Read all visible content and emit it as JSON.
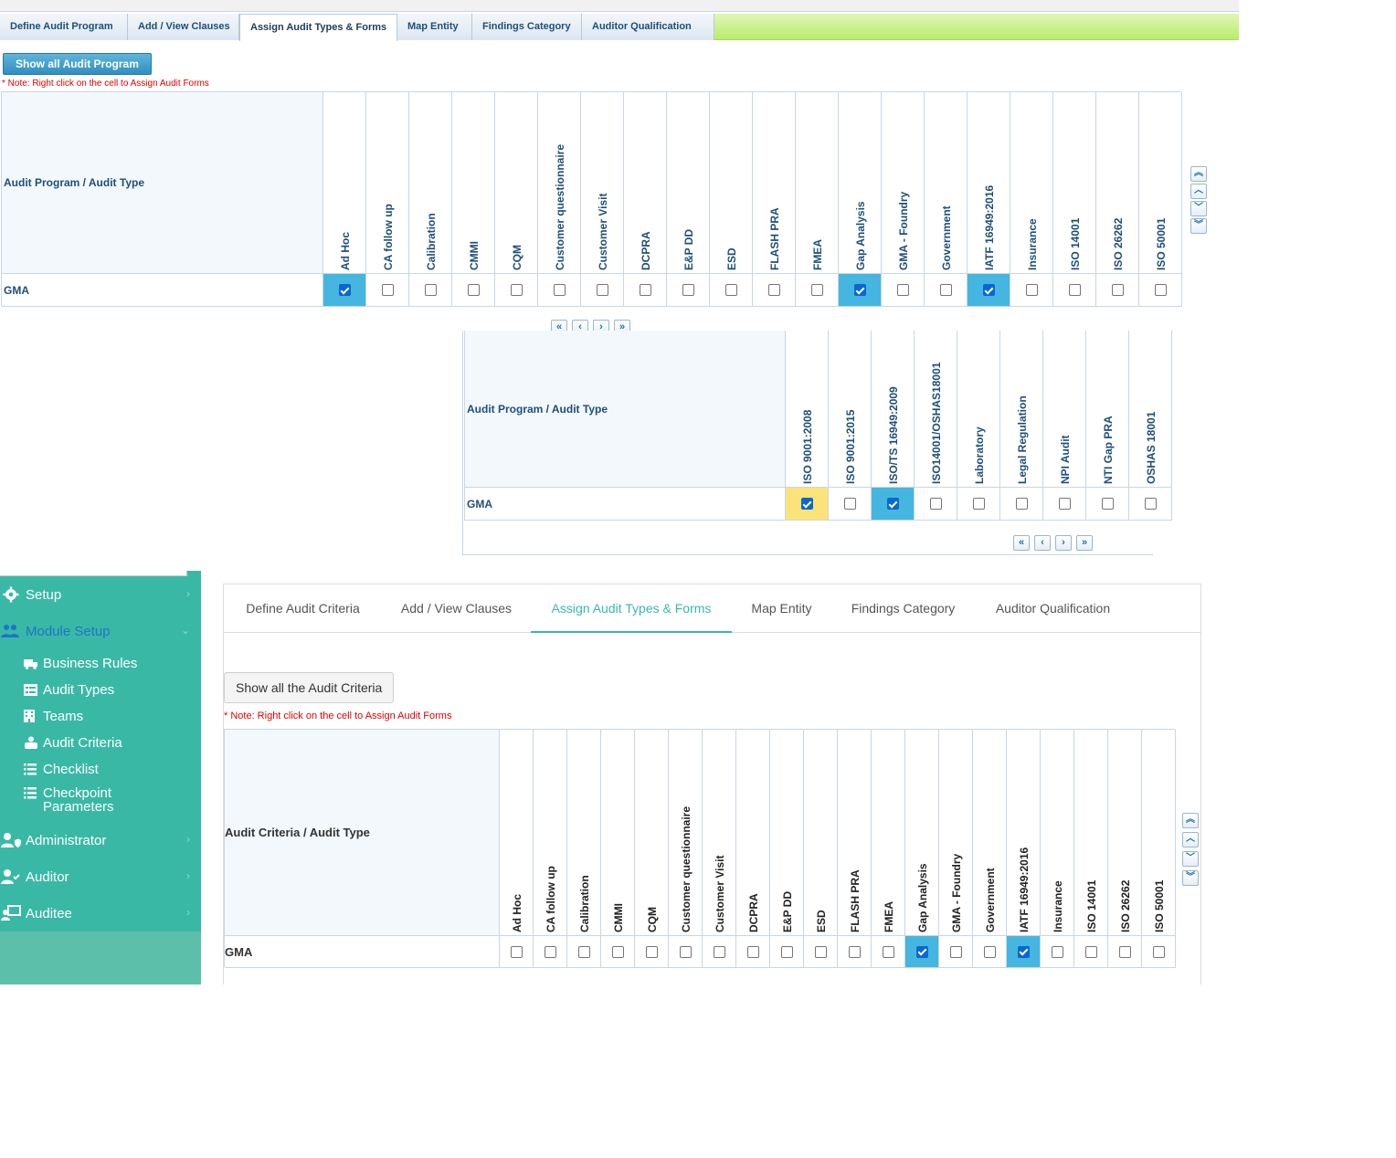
{
  "old_ui": {
    "tabs": [
      {
        "label": "Define Audit Program",
        "active": false
      },
      {
        "label": "Add / View Clauses",
        "active": false
      },
      {
        "label": "Assign Audit Types & Forms",
        "active": true
      },
      {
        "label": "Map Entity",
        "active": false
      },
      {
        "label": "Findings Category",
        "active": false
      },
      {
        "label": "Auditor Qualification",
        "active": false
      }
    ],
    "show_all_button": "Show all Audit Program",
    "note": "* Note: Right click on the cell to Assign Audit Forms",
    "grid1": {
      "header_label": "Audit Program / Audit Type",
      "row_label": "GMA",
      "columns": [
        {
          "name": "Ad Hoc",
          "checked": true,
          "highlight": "blue"
        },
        {
          "name": "CA follow up",
          "checked": false,
          "highlight": ""
        },
        {
          "name": "Calibration",
          "checked": false,
          "highlight": ""
        },
        {
          "name": "CMMI",
          "checked": false,
          "highlight": ""
        },
        {
          "name": "CQM",
          "checked": false,
          "highlight": ""
        },
        {
          "name": "Customer questionnaire",
          "checked": false,
          "highlight": ""
        },
        {
          "name": "Customer Visit",
          "checked": false,
          "highlight": ""
        },
        {
          "name": "DCPRA",
          "checked": false,
          "highlight": ""
        },
        {
          "name": "E&P DD",
          "checked": false,
          "highlight": ""
        },
        {
          "name": "ESD",
          "checked": false,
          "highlight": ""
        },
        {
          "name": "FLASH PRA",
          "checked": false,
          "highlight": ""
        },
        {
          "name": "FMEA",
          "checked": false,
          "highlight": ""
        },
        {
          "name": "Gap Analysis",
          "checked": true,
          "highlight": "blue"
        },
        {
          "name": "GMA - Foundry",
          "checked": false,
          "highlight": ""
        },
        {
          "name": "Government",
          "checked": false,
          "highlight": ""
        },
        {
          "name": "IATF 16949:2016",
          "checked": true,
          "highlight": "blue"
        },
        {
          "name": "Insurance",
          "checked": false,
          "highlight": ""
        },
        {
          "name": "ISO 14001",
          "checked": false,
          "highlight": ""
        },
        {
          "name": "ISO 26262",
          "checked": false,
          "highlight": ""
        },
        {
          "name": "ISO 50001",
          "checked": false,
          "highlight": ""
        }
      ]
    },
    "grid2": {
      "header_label": "Audit Program / Audit Type",
      "row_label": "GMA",
      "columns": [
        {
          "name": "ISO 9001:2008",
          "checked": true,
          "highlight": "yellow"
        },
        {
          "name": "ISO 9001:2015",
          "checked": false,
          "highlight": ""
        },
        {
          "name": "ISO/TS 16949:2009",
          "checked": true,
          "highlight": "blue"
        },
        {
          "name": "ISO14001/OSHAS18001",
          "checked": false,
          "highlight": ""
        },
        {
          "name": "Laboratory",
          "checked": false,
          "highlight": ""
        },
        {
          "name": "Legal Regulation",
          "checked": false,
          "highlight": ""
        },
        {
          "name": "NPI Audit",
          "checked": false,
          "highlight": ""
        },
        {
          "name": "NTI Gap PRA",
          "checked": false,
          "highlight": ""
        },
        {
          "name": "OSHAS 18001",
          "checked": false,
          "highlight": ""
        }
      ]
    }
  },
  "new_ui": {
    "sidebar": {
      "items": [
        {
          "label": "Setup",
          "icon": "gear-icon",
          "active": false
        },
        {
          "label": "Module Setup",
          "icon": "users-gear-icon",
          "active": true
        },
        {
          "label": "Administrator",
          "icon": "user-shield-icon",
          "active": false
        },
        {
          "label": "Auditor",
          "icon": "user-check-icon",
          "active": false
        },
        {
          "label": "Auditee",
          "icon": "user-screen-icon",
          "active": false
        }
      ],
      "subitems": [
        {
          "label": "Business Rules",
          "icon": "truck-icon"
        },
        {
          "label": "Audit Types",
          "icon": "list-table-icon"
        },
        {
          "label": "Teams",
          "icon": "building-icon"
        },
        {
          "label": "Audit Criteria",
          "icon": "user-group-icon"
        },
        {
          "label": "Checklist",
          "icon": "list-icon"
        },
        {
          "label": "Checkpoint Parameters",
          "icon": "list-check-icon"
        }
      ]
    },
    "tabs": [
      {
        "label": "Define Audit Criteria",
        "active": false
      },
      {
        "label": "Add / View Clauses",
        "active": false
      },
      {
        "label": "Assign Audit Types & Forms",
        "active": true
      },
      {
        "label": "Map Entity",
        "active": false
      },
      {
        "label": "Findings Category",
        "active": false
      },
      {
        "label": "Auditor Qualification",
        "active": false
      }
    ],
    "show_all_button": "Show all the Audit Criteria",
    "note": "* Note: Right click on the cell to Assign Audit Forms",
    "grid": {
      "header_label": "Audit Criteria / Audit Type",
      "row_label": "GMA",
      "columns": [
        {
          "name": "Ad Hoc",
          "checked": false,
          "highlight": ""
        },
        {
          "name": "CA follow up",
          "checked": false,
          "highlight": ""
        },
        {
          "name": "Calibration",
          "checked": false,
          "highlight": ""
        },
        {
          "name": "CMMI",
          "checked": false,
          "highlight": ""
        },
        {
          "name": "CQM",
          "checked": false,
          "highlight": ""
        },
        {
          "name": "Customer questionnaire",
          "checked": false,
          "highlight": ""
        },
        {
          "name": "Customer Visit",
          "checked": false,
          "highlight": ""
        },
        {
          "name": "DCPRA",
          "checked": false,
          "highlight": ""
        },
        {
          "name": "E&P DD",
          "checked": false,
          "highlight": ""
        },
        {
          "name": "ESD",
          "checked": false,
          "highlight": ""
        },
        {
          "name": "FLASH PRA",
          "checked": false,
          "highlight": ""
        },
        {
          "name": "FMEA",
          "checked": false,
          "highlight": ""
        },
        {
          "name": "Gap Analysis",
          "checked": true,
          "highlight": "blue"
        },
        {
          "name": "GMA - Foundry",
          "checked": false,
          "highlight": ""
        },
        {
          "name": "Government",
          "checked": false,
          "highlight": ""
        },
        {
          "name": "IATF 16949:2016",
          "checked": true,
          "highlight": "blue"
        },
        {
          "name": "Insurance",
          "checked": false,
          "highlight": ""
        },
        {
          "name": "ISO 14001",
          "checked": false,
          "highlight": ""
        },
        {
          "name": "ISO 26262",
          "checked": false,
          "highlight": ""
        },
        {
          "name": "ISO 50001",
          "checked": false,
          "highlight": ""
        }
      ]
    }
  },
  "pager_icons": [
    "double-left-icon",
    "left-icon",
    "right-icon",
    "double-right-icon"
  ],
  "scroll_icons": [
    "double-up-icon",
    "up-icon",
    "down-icon",
    "double-down-icon"
  ],
  "colors": {
    "accent_teal": "#3ab8a6",
    "highlight_blue": "#45b6e0",
    "highlight_yellow": "#fbe37a",
    "note_red": "#e00000"
  }
}
